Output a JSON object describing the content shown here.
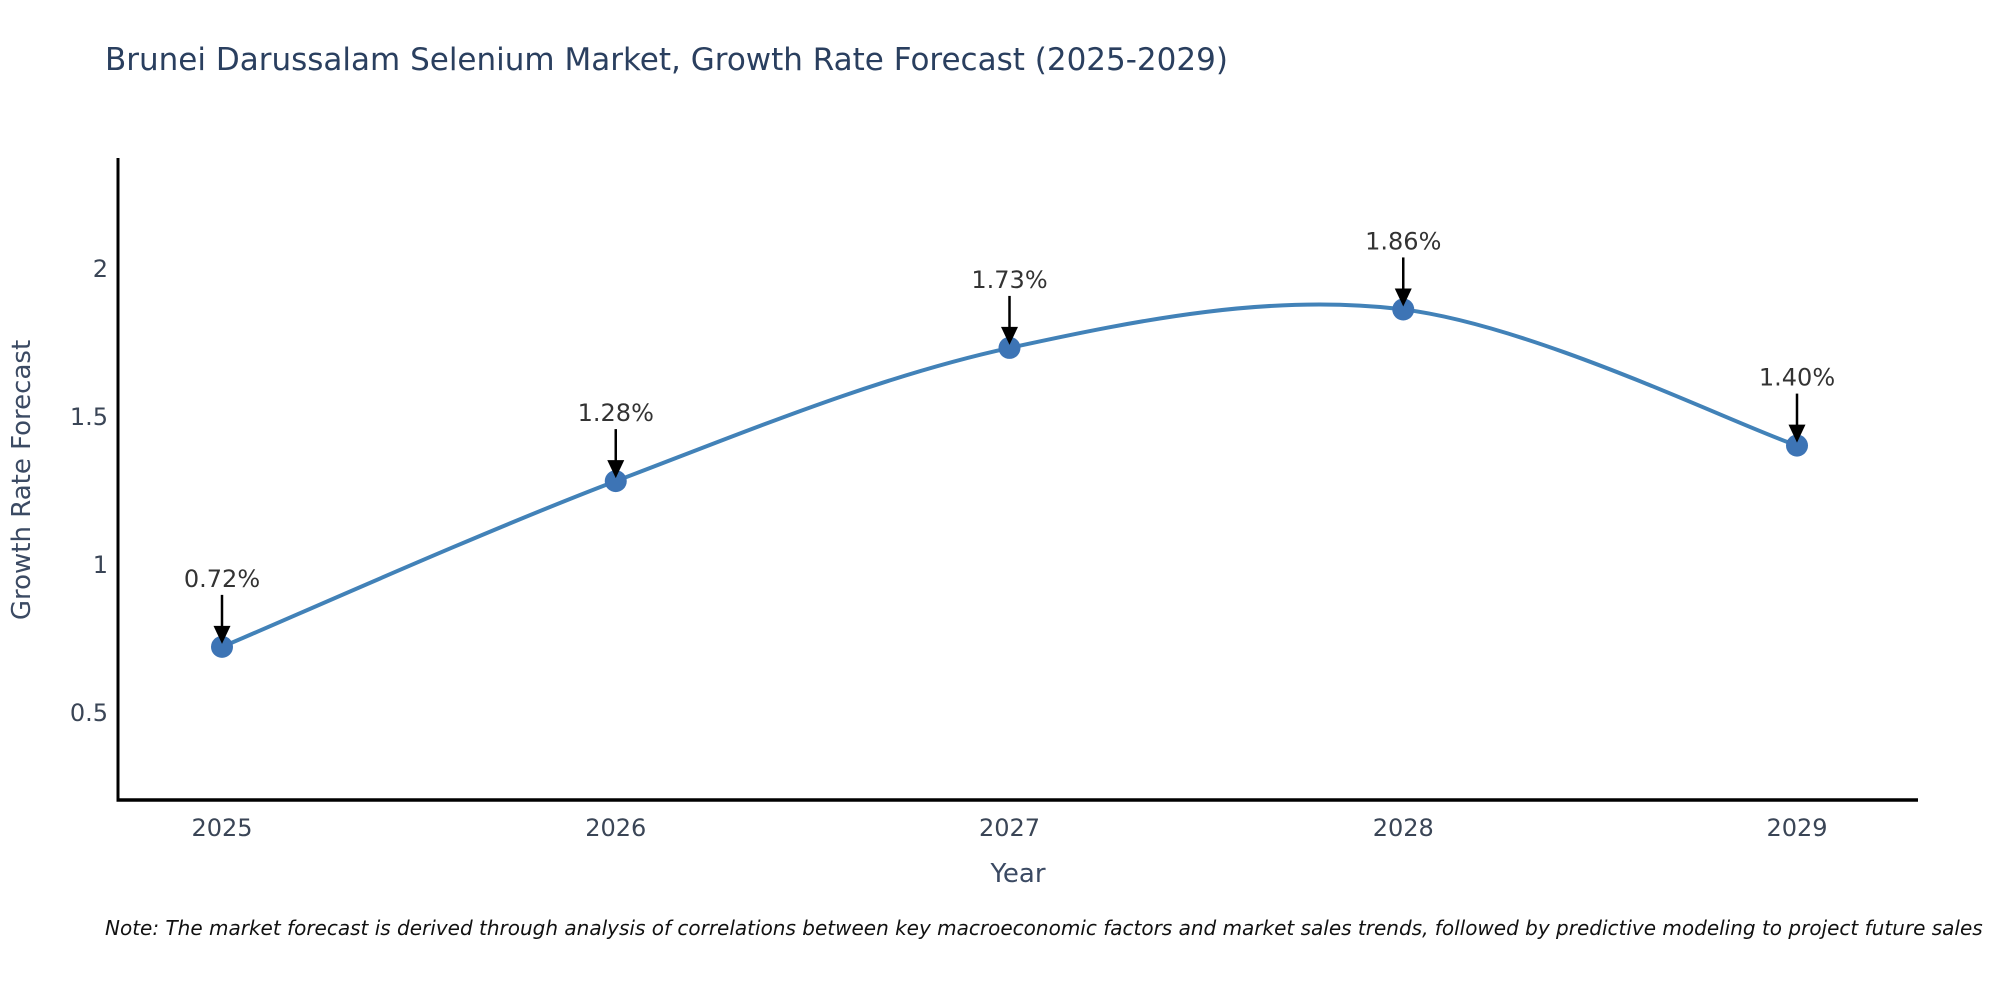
{
  "title": "Brunei Darussalam Selenium Market, Growth Rate Forecast (2025-2029)",
  "note": "Note: The market forecast is derived through analysis of correlations between key macroeconomic factors and market sales trends, followed by predictive modeling to project future sales",
  "chart_data": {
    "type": "line",
    "title": "Brunei Darussalam Selenium Market, Growth Rate Forecast (2025-2029)",
    "xlabel": "Year",
    "ylabel": "Growth Rate Forecast",
    "categories": [
      "2025",
      "2026",
      "2027",
      "2028",
      "2029"
    ],
    "series": [
      {
        "name": "Growth Rate Forecast",
        "values": [
          0.72,
          1.28,
          1.73,
          1.86,
          1.4
        ]
      }
    ],
    "point_labels": [
      "0.72%",
      "1.28%",
      "1.73%",
      "1.86%",
      "1.40%"
    ],
    "yticks": [
      0.5,
      1,
      1.5,
      2
    ],
    "ytick_labels": [
      "0.5",
      "1",
      "1.5",
      "2"
    ],
    "ylim": [
      0.2,
      2.37
    ],
    "smooth": true,
    "grid": false,
    "legend": false,
    "annotation_style": "arrow-down",
    "colors": {
      "line": "#4282b8",
      "marker": "#3d74b5",
      "arrow": "#000000",
      "title": "#2a3f5f",
      "axis_label": "#3b4a63",
      "tick_label": "#3a4556",
      "annotation_text": "#333333",
      "spine": "#000000",
      "note": "#111111"
    }
  }
}
